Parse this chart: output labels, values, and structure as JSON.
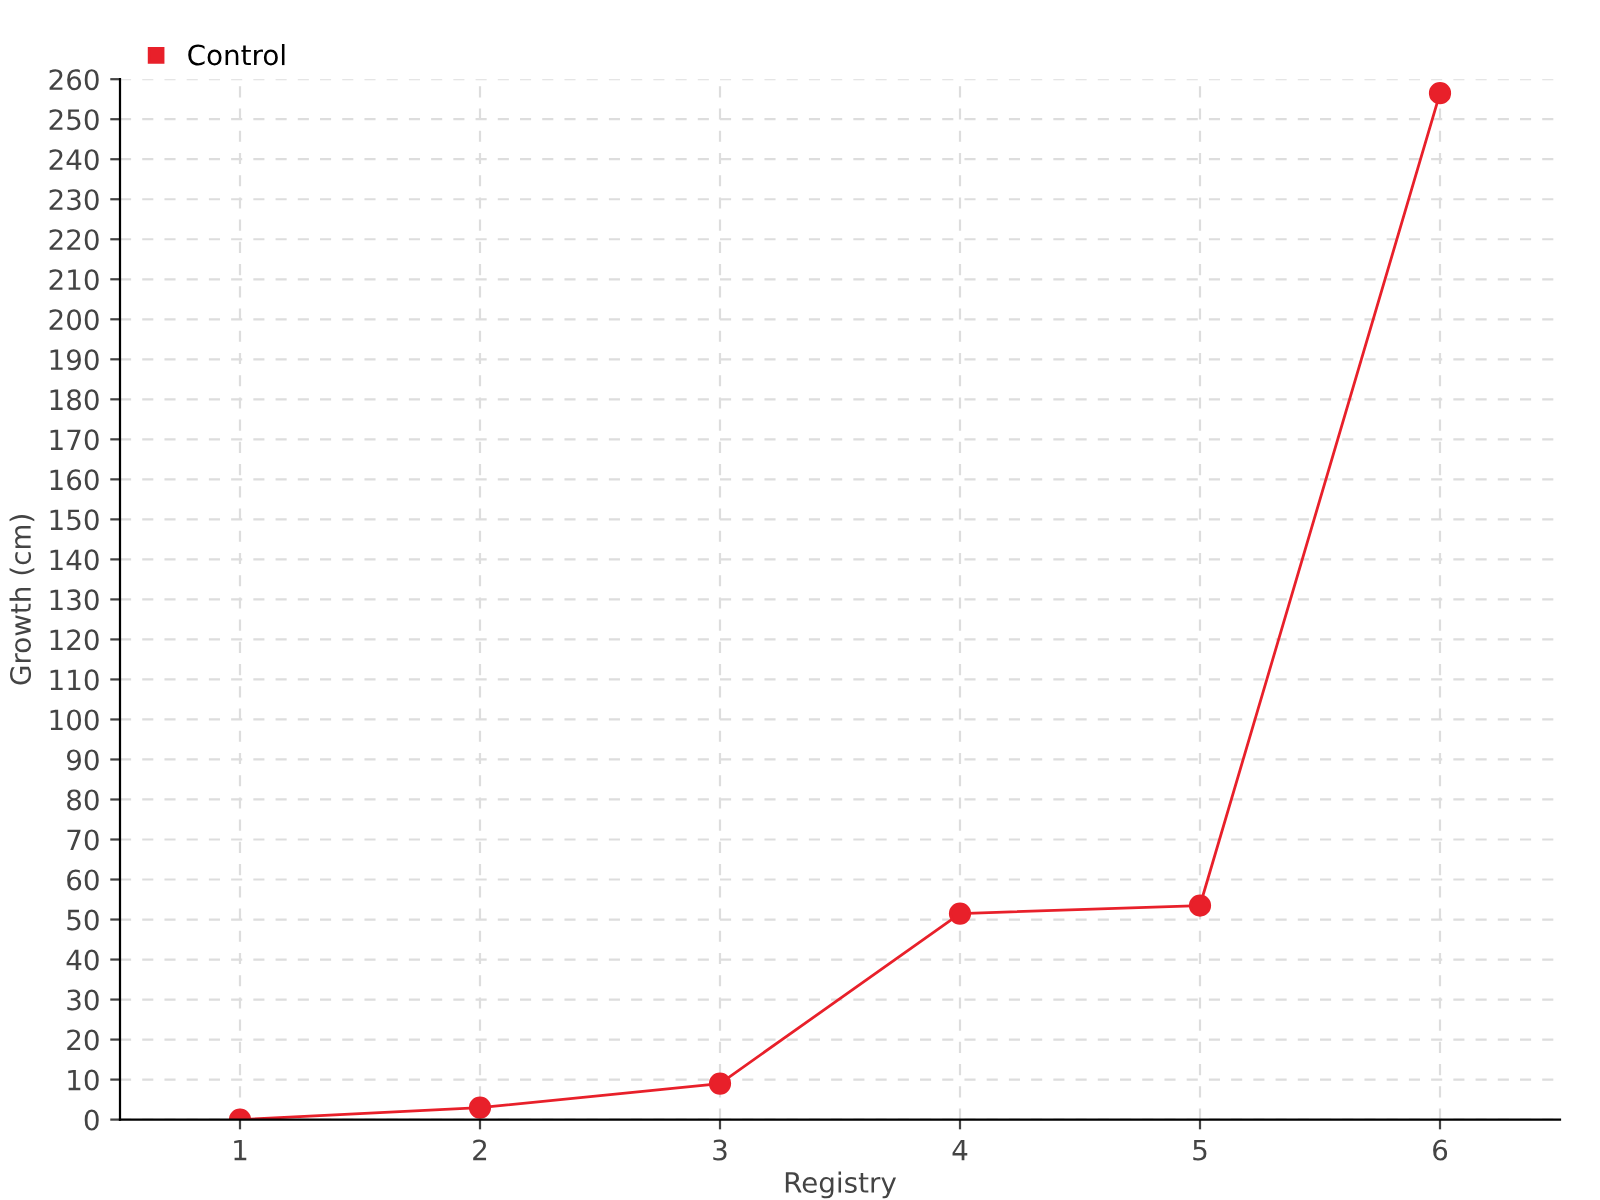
{
  "chart_data": {
    "type": "line",
    "xlabel": "Registry",
    "ylabel": "Growth (cm)",
    "x": [
      1,
      2,
      3,
      4,
      5,
      6
    ],
    "series": [
      {
        "name": "Control",
        "color": "#e8202a",
        "values": [
          0,
          3,
          9,
          51.5,
          53.5,
          256.5
        ]
      }
    ],
    "xlim": [
      0.5,
      6.5
    ],
    "xticks": [
      1,
      2,
      3,
      4,
      5,
      6
    ],
    "ylim": [
      0,
      260
    ],
    "yticks": [
      0,
      10,
      20,
      30,
      40,
      50,
      60,
      70,
      80,
      90,
      100,
      110,
      120,
      130,
      140,
      150,
      160,
      170,
      180,
      190,
      200,
      210,
      220,
      230,
      240,
      250,
      260
    ],
    "grid": true,
    "legend": "top left",
    "marker": "circle",
    "line_style": "solid"
  }
}
